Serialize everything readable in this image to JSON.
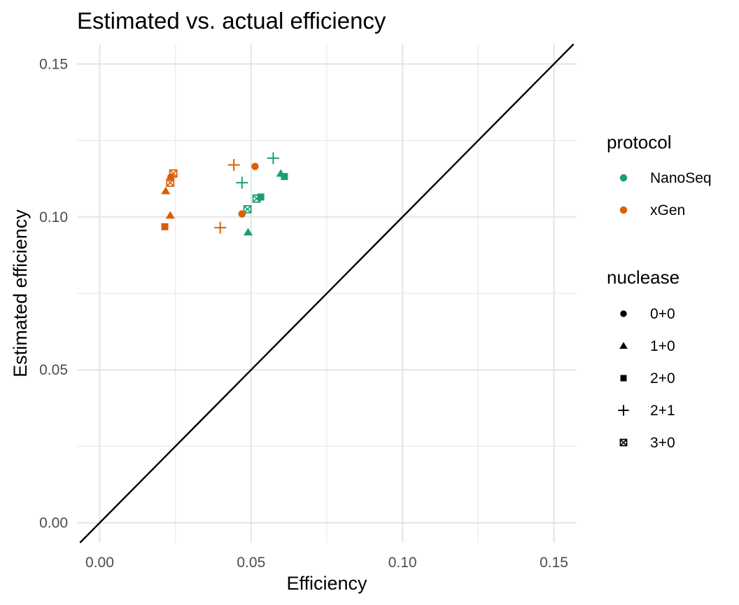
{
  "chart_data": {
    "type": "scatter",
    "title": "Estimated vs. actual efficiency",
    "xlabel": "Efficiency",
    "ylabel": "Estimated efficiency",
    "xlim": [
      -0.0075,
      0.1575
    ],
    "ylim": [
      -0.0065,
      0.1565
    ],
    "xticks": [
      0.0,
      0.05,
      0.1,
      0.15
    ],
    "yticks": [
      0.0,
      0.05,
      0.1,
      0.15
    ],
    "xtick_labels": [
      "0.00",
      "0.05",
      "0.10",
      "0.15"
    ],
    "ytick_labels": [
      "0.00",
      "0.05",
      "0.10",
      "0.15"
    ],
    "grid": true,
    "reference_line": {
      "kind": "identity",
      "slope": 1,
      "intercept": 0,
      "color": "#000000"
    },
    "legend_placement": "right",
    "color_legend": {
      "title": "protocol",
      "entries": [
        {
          "label": "NanoSeq",
          "color": "#1b9e77"
        },
        {
          "label": "xGen",
          "color": "#d95f02"
        }
      ]
    },
    "shape_legend": {
      "title": "nuclease",
      "entries": [
        {
          "label": "0+0",
          "shape": "circle"
        },
        {
          "label": "1+0",
          "shape": "triangle"
        },
        {
          "label": "2+0",
          "shape": "square"
        },
        {
          "label": "2+1",
          "shape": "plus"
        },
        {
          "label": "3+0",
          "shape": "square-x"
        }
      ]
    },
    "points": [
      {
        "protocol": "NanoSeq",
        "nuclease": "0+0",
        "x": 0.047,
        "y": 0.101
      },
      {
        "protocol": "NanoSeq",
        "nuclease": "1+0",
        "x": 0.049,
        "y": 0.095
      },
      {
        "protocol": "NanoSeq",
        "nuclease": "1+0",
        "x": 0.0598,
        "y": 0.1142
      },
      {
        "protocol": "NanoSeq",
        "nuclease": "2+0",
        "x": 0.0532,
        "y": 0.1065
      },
      {
        "protocol": "NanoSeq",
        "nuclease": "2+0",
        "x": 0.061,
        "y": 0.1132
      },
      {
        "protocol": "NanoSeq",
        "nuclease": "2+1",
        "x": 0.047,
        "y": 0.1112
      },
      {
        "protocol": "NanoSeq",
        "nuclease": "2+1",
        "x": 0.0573,
        "y": 0.1192
      },
      {
        "protocol": "NanoSeq",
        "nuclease": "3+0",
        "x": 0.0488,
        "y": 0.1025
      },
      {
        "protocol": "NanoSeq",
        "nuclease": "3+0",
        "x": 0.0518,
        "y": 0.106
      },
      {
        "protocol": "xGen",
        "nuclease": "0+0",
        "x": 0.0235,
        "y": 0.113
      },
      {
        "protocol": "xGen",
        "nuclease": "0+0",
        "x": 0.047,
        "y": 0.101
      },
      {
        "protocol": "xGen",
        "nuclease": "0+0",
        "x": 0.0513,
        "y": 0.1165
      },
      {
        "protocol": "xGen",
        "nuclease": "1+0",
        "x": 0.0218,
        "y": 0.1085
      },
      {
        "protocol": "xGen",
        "nuclease": "1+0",
        "x": 0.0233,
        "y": 0.1005
      },
      {
        "protocol": "xGen",
        "nuclease": "2+0",
        "x": 0.0215,
        "y": 0.0968
      },
      {
        "protocol": "xGen",
        "nuclease": "2+1",
        "x": 0.0398,
        "y": 0.0965
      },
      {
        "protocol": "xGen",
        "nuclease": "2+1",
        "x": 0.0443,
        "y": 0.117
      },
      {
        "protocol": "xGen",
        "nuclease": "3+0",
        "x": 0.0233,
        "y": 0.1112
      },
      {
        "protocol": "xGen",
        "nuclease": "3+0",
        "x": 0.0243,
        "y": 0.1142
      }
    ]
  }
}
